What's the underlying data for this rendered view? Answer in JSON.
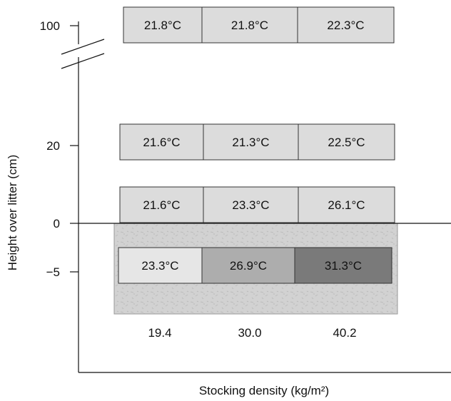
{
  "chart_data": {
    "type": "table",
    "title": "",
    "xlabel": "Stocking density (kg/m²)",
    "ylabel": "Height over litter (cm)",
    "x_categories": [
      "19.4",
      "30.0",
      "40.2"
    ],
    "y_ticks": [
      "100",
      "20",
      "0",
      "−5"
    ],
    "axis_break": true,
    "rows": [
      {
        "height": "100",
        "cells": [
          "21.8°C",
          "21.8°C",
          "22.3°C"
        ],
        "colors": [
          "#dcdcdc",
          "#dcdcdc",
          "#dcdcdc"
        ]
      },
      {
        "height": "20",
        "cells": [
          "21.6°C",
          "21.3°C",
          "22.5°C"
        ],
        "colors": [
          "#dcdcdc",
          "#dcdcdc",
          "#dcdcdc"
        ]
      },
      {
        "height": "0",
        "cells": [
          "21.6°C",
          "23.3°C",
          "26.1°C"
        ],
        "colors": [
          "#dcdcdc",
          "#dcdcdc",
          "#dcdcdc"
        ]
      },
      {
        "height": "−5",
        "cells": [
          "23.3°C",
          "26.9°C",
          "31.3°C"
        ],
        "colors": [
          "#e6e6e6",
          "#adadad",
          "#7a7a7a"
        ]
      }
    ],
    "litter_color": "#cfcfcf"
  }
}
